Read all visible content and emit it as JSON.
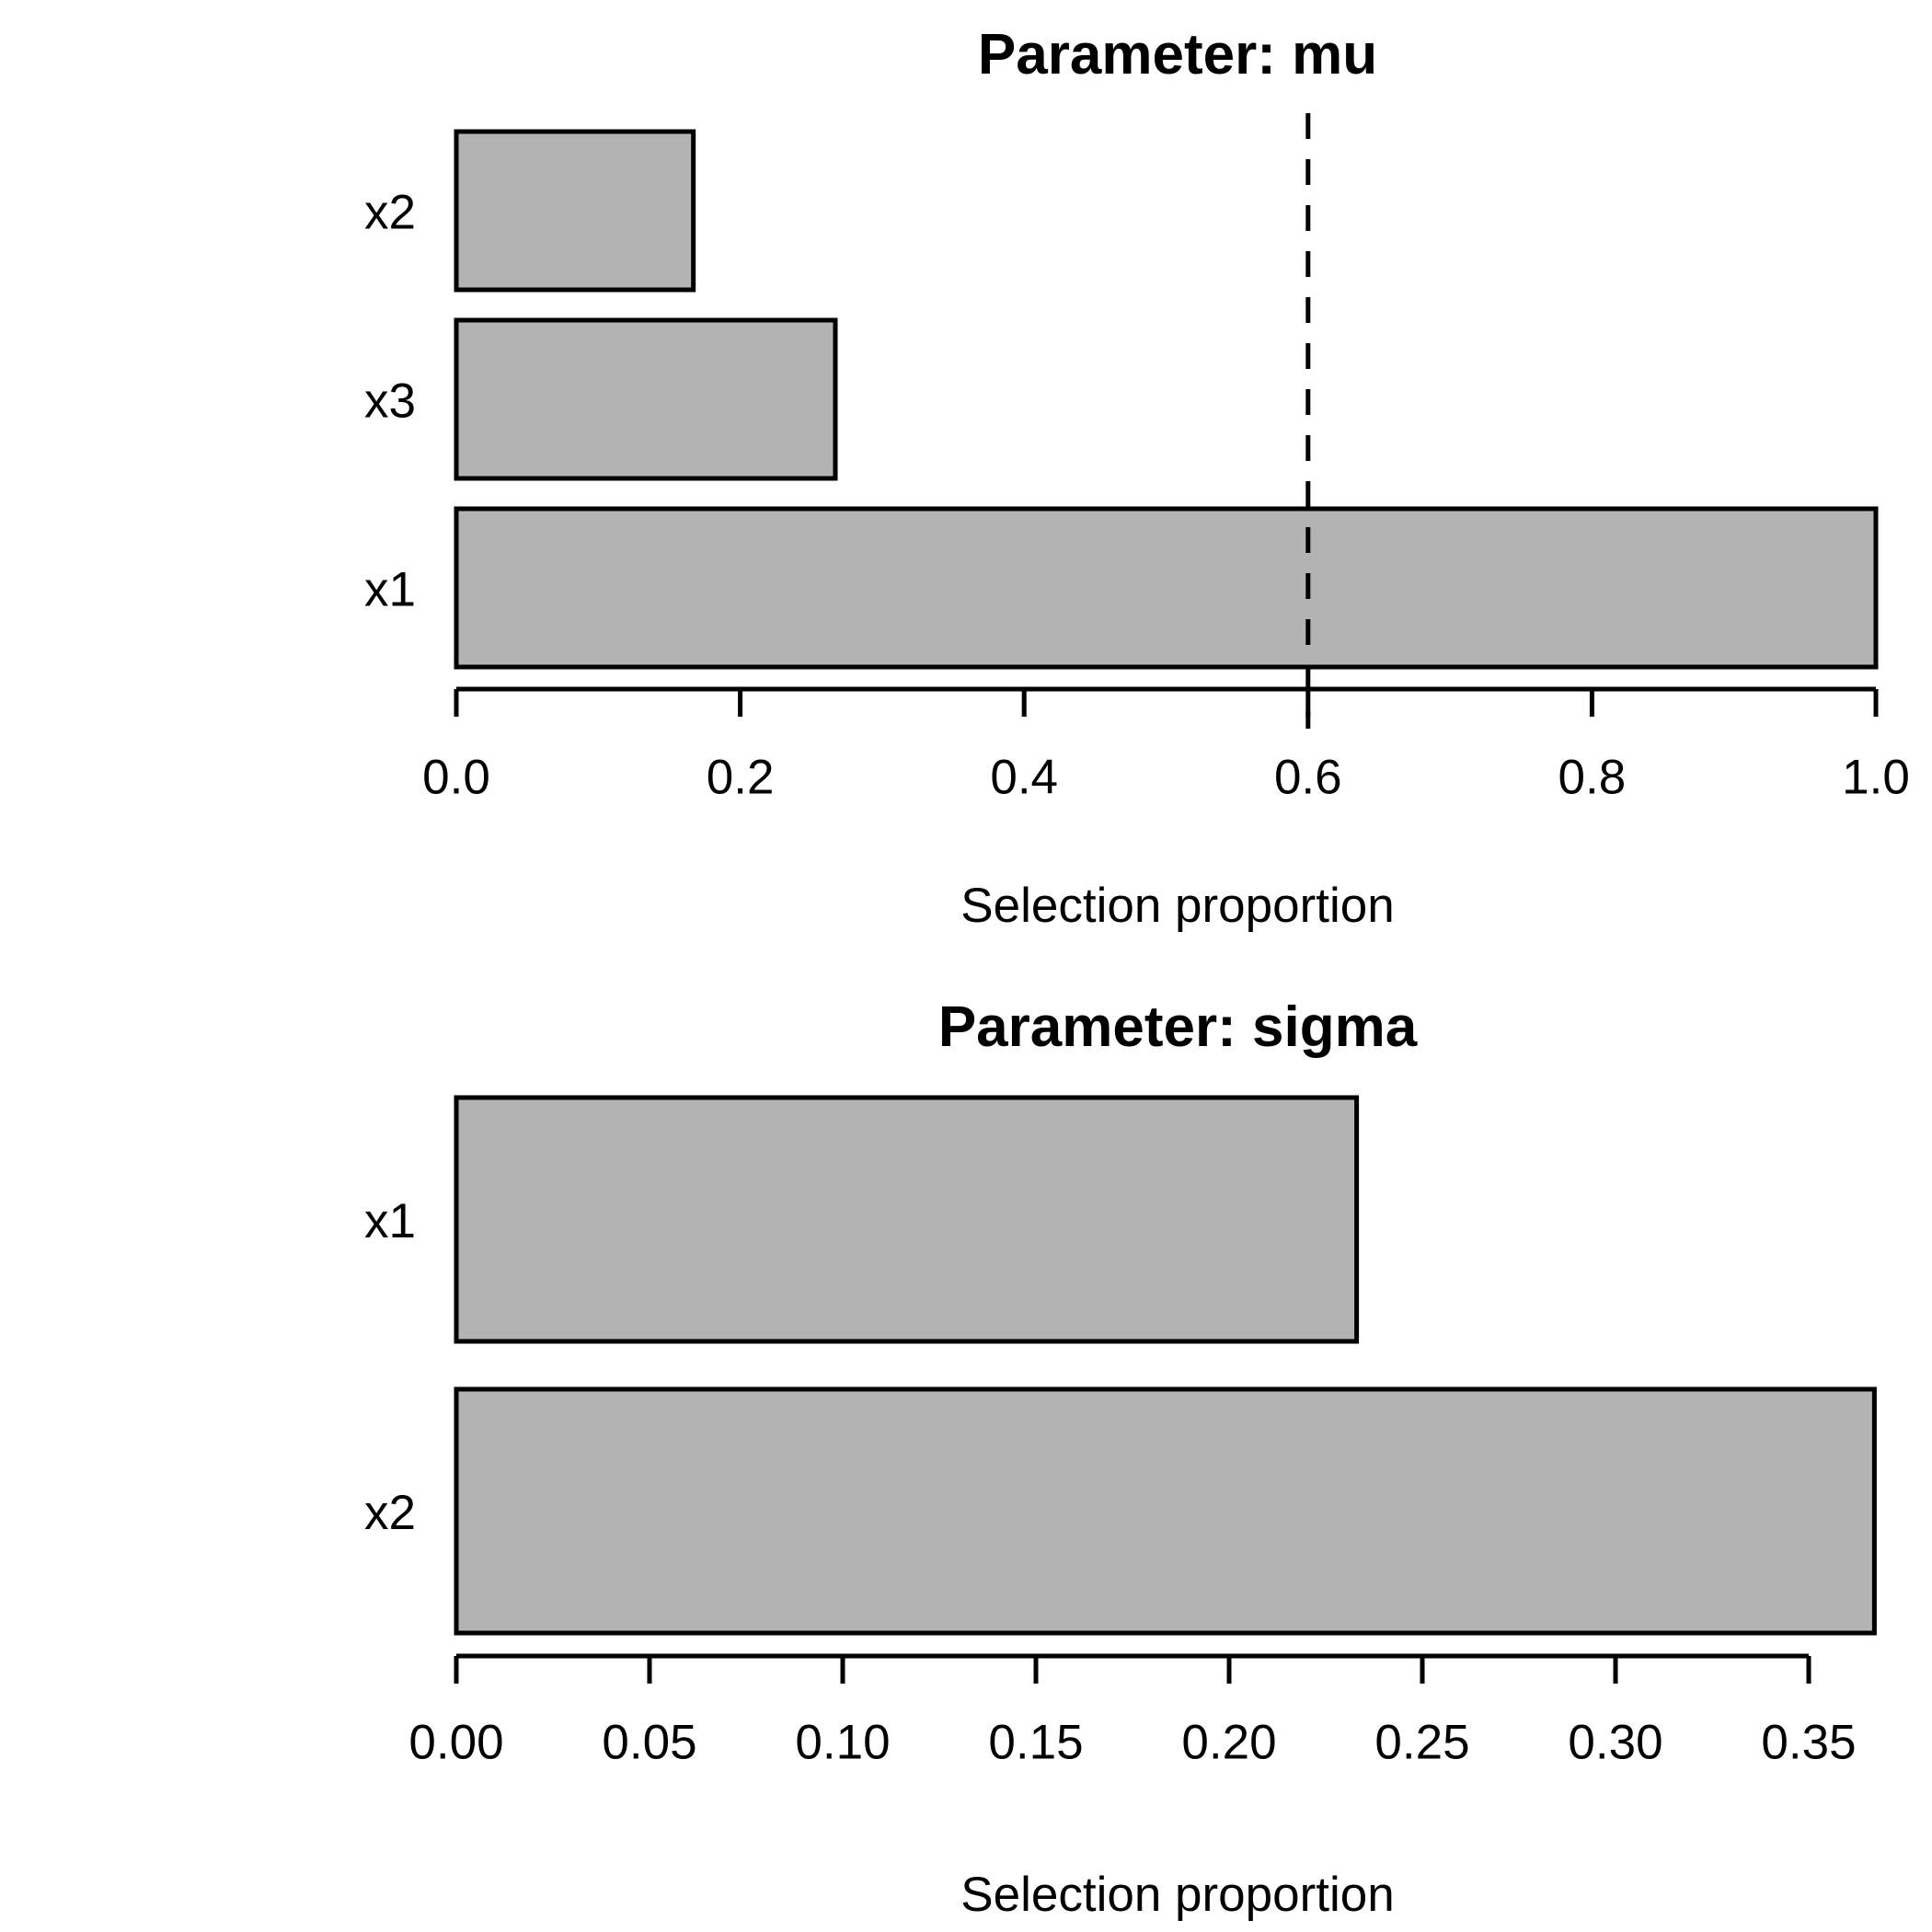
{
  "page": {
    "background": "#ffffff",
    "foreground": "#000000"
  },
  "chart_data": [
    {
      "type": "bar",
      "orientation": "horizontal",
      "title": "Parameter: mu",
      "xlabel": "Selection proportion",
      "categories": [
        "x2",
        "x3",
        "x1"
      ],
      "values": [
        0.167,
        0.267,
        1.0
      ],
      "xlim": [
        0,
        1.0
      ],
      "xticks": {
        "values": [
          0,
          0.2,
          0.4,
          0.6,
          0.8,
          1.0
        ],
        "labels": [
          "0.0",
          "0.2",
          "0.4",
          "0.6",
          "0.8",
          "1.0"
        ]
      },
      "threshold_line": 0.6,
      "threshold_style": "dashed",
      "bar_fill": "#b3b3b3",
      "bar_border": "#000000",
      "grid": "off",
      "legend": "none"
    },
    {
      "type": "bar",
      "orientation": "horizontal",
      "title": "Parameter: sigma",
      "xlabel": "Selection proportion",
      "categories": [
        "x1",
        "x2"
      ],
      "values": [
        0.233,
        0.367
      ],
      "xlim": [
        0,
        0.37
      ],
      "xticks": {
        "values": [
          0,
          0.05,
          0.1,
          0.15,
          0.2,
          0.25,
          0.3,
          0.35
        ],
        "labels": [
          "0.00",
          "0.05",
          "0.10",
          "0.15",
          "0.20",
          "0.25",
          "0.30",
          "0.35"
        ]
      },
      "threshold_line": null,
      "threshold_style": "dashed",
      "bar_fill": "#b3b3b3",
      "bar_border": "#000000",
      "grid": "off",
      "legend": "none"
    }
  ]
}
